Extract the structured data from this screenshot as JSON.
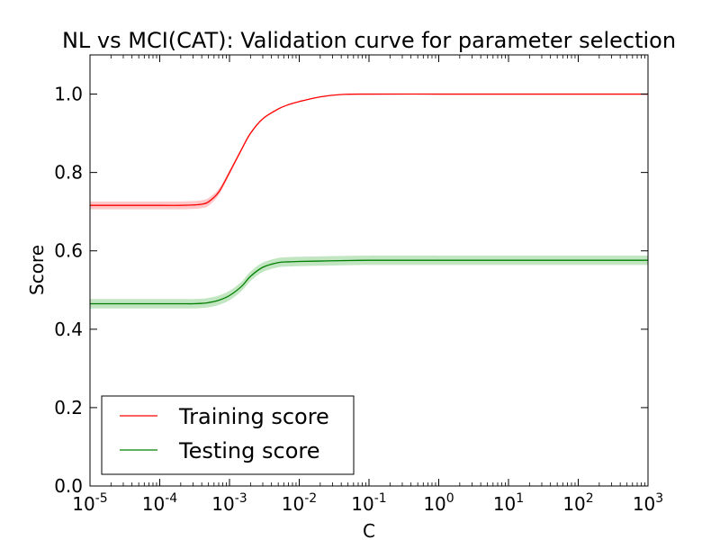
{
  "chart_data": {
    "type": "line",
    "title": "NL vs MCI(CAT): Validation curve for parameter selection",
    "xlabel": "C",
    "ylabel": "Score",
    "xscale": "log",
    "xlim": [
      1e-05,
      1000
    ],
    "ylim": [
      0.0,
      1.1
    ],
    "x_ticks": [
      {
        "base": "10",
        "exp": "-5"
      },
      {
        "base": "10",
        "exp": "-4"
      },
      {
        "base": "10",
        "exp": "-3"
      },
      {
        "base": "10",
        "exp": "-2"
      },
      {
        "base": "10",
        "exp": "-1"
      },
      {
        "base": "10",
        "exp": "0"
      },
      {
        "base": "10",
        "exp": "1"
      },
      {
        "base": "10",
        "exp": "2"
      },
      {
        "base": "10",
        "exp": "3"
      }
    ],
    "y_ticks": [
      "0.0",
      "0.2",
      "0.4",
      "0.6",
      "0.8",
      "1.0"
    ],
    "grid": false,
    "legend_position": "lower-left",
    "x": [
      1e-05,
      0.0001,
      0.0002,
      0.0003,
      0.0004,
      0.0005,
      0.0007,
      0.001,
      0.0015,
      0.002,
      0.003,
      0.005,
      0.007,
      0.01,
      0.02,
      0.04,
      0.1,
      1,
      10,
      100,
      1000
    ],
    "series": [
      {
        "name": "Training score",
        "color": "#ff0000",
        "band_color": "#ff9999",
        "values": [
          0.716,
          0.716,
          0.716,
          0.717,
          0.719,
          0.725,
          0.75,
          0.8,
          0.86,
          0.9,
          0.937,
          0.962,
          0.973,
          0.981,
          0.993,
          0.999,
          1.0,
          1.0,
          1.0,
          1.0,
          1.0
        ],
        "std": [
          0.01,
          0.01,
          0.01,
          0.01,
          0.01,
          0.01,
          0.008,
          0.006,
          0.004,
          0.003,
          0.002,
          0.002,
          0.001,
          0.001,
          0.001,
          0.0,
          0.0,
          0.0,
          0.0,
          0.0,
          0.0
        ]
      },
      {
        "name": "Testing score",
        "color": "#008000",
        "band_color": "#90d090",
        "values": [
          0.465,
          0.465,
          0.465,
          0.465,
          0.466,
          0.468,
          0.474,
          0.486,
          0.51,
          0.535,
          0.558,
          0.57,
          0.572,
          0.573,
          0.574,
          0.575,
          0.576,
          0.576,
          0.576,
          0.576,
          0.576
        ],
        "std": [
          0.012,
          0.012,
          0.012,
          0.012,
          0.012,
          0.012,
          0.012,
          0.012,
          0.012,
          0.012,
          0.012,
          0.012,
          0.012,
          0.012,
          0.012,
          0.012,
          0.012,
          0.012,
          0.012,
          0.012,
          0.012
        ]
      }
    ]
  }
}
